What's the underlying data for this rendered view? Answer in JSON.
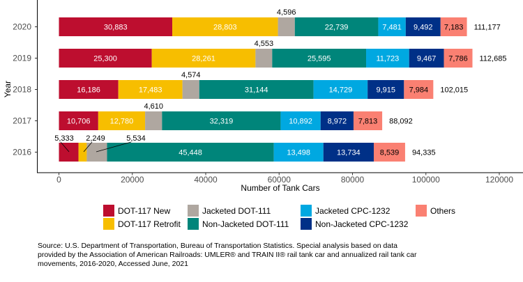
{
  "chart_data": {
    "type": "bar",
    "orientation": "horizontal",
    "stacked": true,
    "xlabel": "Number of Tank Cars",
    "ylabel": "Year",
    "xlim": [
      -6000,
      126500
    ],
    "xticks": [
      0,
      20000,
      40000,
      60000,
      80000,
      100000,
      120000
    ],
    "grid": false,
    "legend_position": "bottom",
    "categories": [
      "2020",
      "2019",
      "2018",
      "2017",
      "2016"
    ],
    "totals": [
      "111,177",
      "112,685",
      "102,015",
      "88,092",
      "94,335"
    ],
    "series": [
      {
        "name": "DOT-117 New",
        "color": "#BD0E2F",
        "values": [
          30883,
          25300,
          16186,
          10706,
          5333
        ]
      },
      {
        "name": "DOT-117 Retrofit",
        "color": "#F7BE00",
        "values": [
          28803,
          28261,
          17483,
          12780,
          2249
        ]
      },
      {
        "name": "Jacketed DOT-111",
        "color": "#AFA7A0",
        "values": [
          4596,
          4553,
          4574,
          4610,
          5534
        ]
      },
      {
        "name": "Non-Jacketed DOT-111",
        "color": "#00857A",
        "values": [
          22739,
          25595,
          31144,
          32319,
          45448
        ]
      },
      {
        "name": "Jacketed CPC-1232",
        "color": "#00A8E1",
        "values": [
          7481,
          11723,
          14729,
          10892,
          13498
        ]
      },
      {
        "name": "Non-Jacketed CPC-1232",
        "color": "#003087",
        "values": [
          9492,
          9467,
          9915,
          8972,
          13734
        ]
      },
      {
        "name": "Others",
        "color": "#FA8072",
        "values": [
          7183,
          7786,
          7984,
          7813,
          8539
        ]
      }
    ]
  },
  "source": [
    "Source: U.S. Department of Transportation, Bureau of Transportation Statistics. Special analysis based on data",
    "provided by the Association of American Railroads: UMLER® and TRAIN II® rail tank car and annualized rail tank car",
    "movements, 2016-2020, Accessed June, 2021"
  ]
}
